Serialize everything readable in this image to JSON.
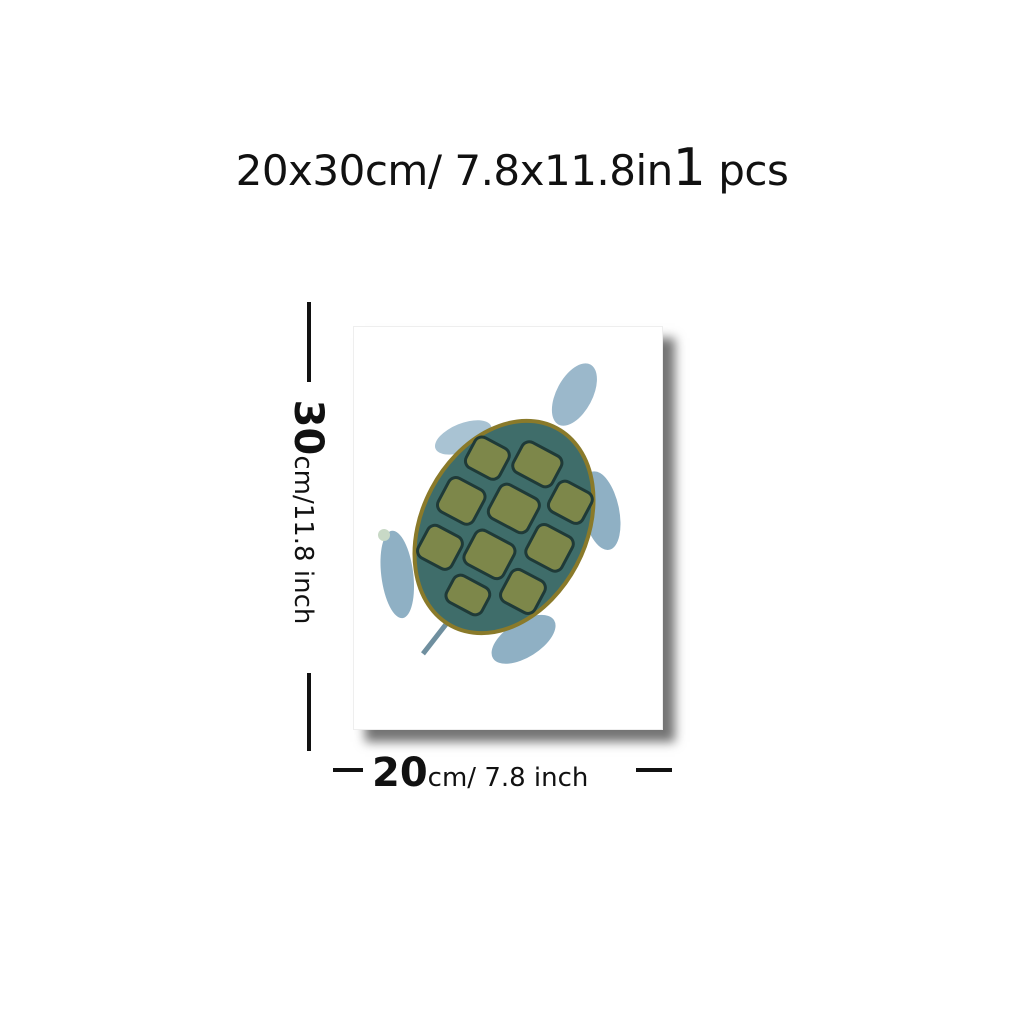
{
  "title": {
    "size": "20x30cm/ 7.8x11.8in",
    "quantity": "1",
    "unit": "pcs"
  },
  "height_label": {
    "value": "30",
    "unit": "cm/11.8 inch"
  },
  "width_label": {
    "value": "20",
    "unit": "cm/ 7.8 inch"
  },
  "artwork": {
    "subject": "watercolor turtle",
    "colors": {
      "shell": "#3f6d6a",
      "scute": "#8a8a3a",
      "skin": "#8fb0c4"
    }
  }
}
